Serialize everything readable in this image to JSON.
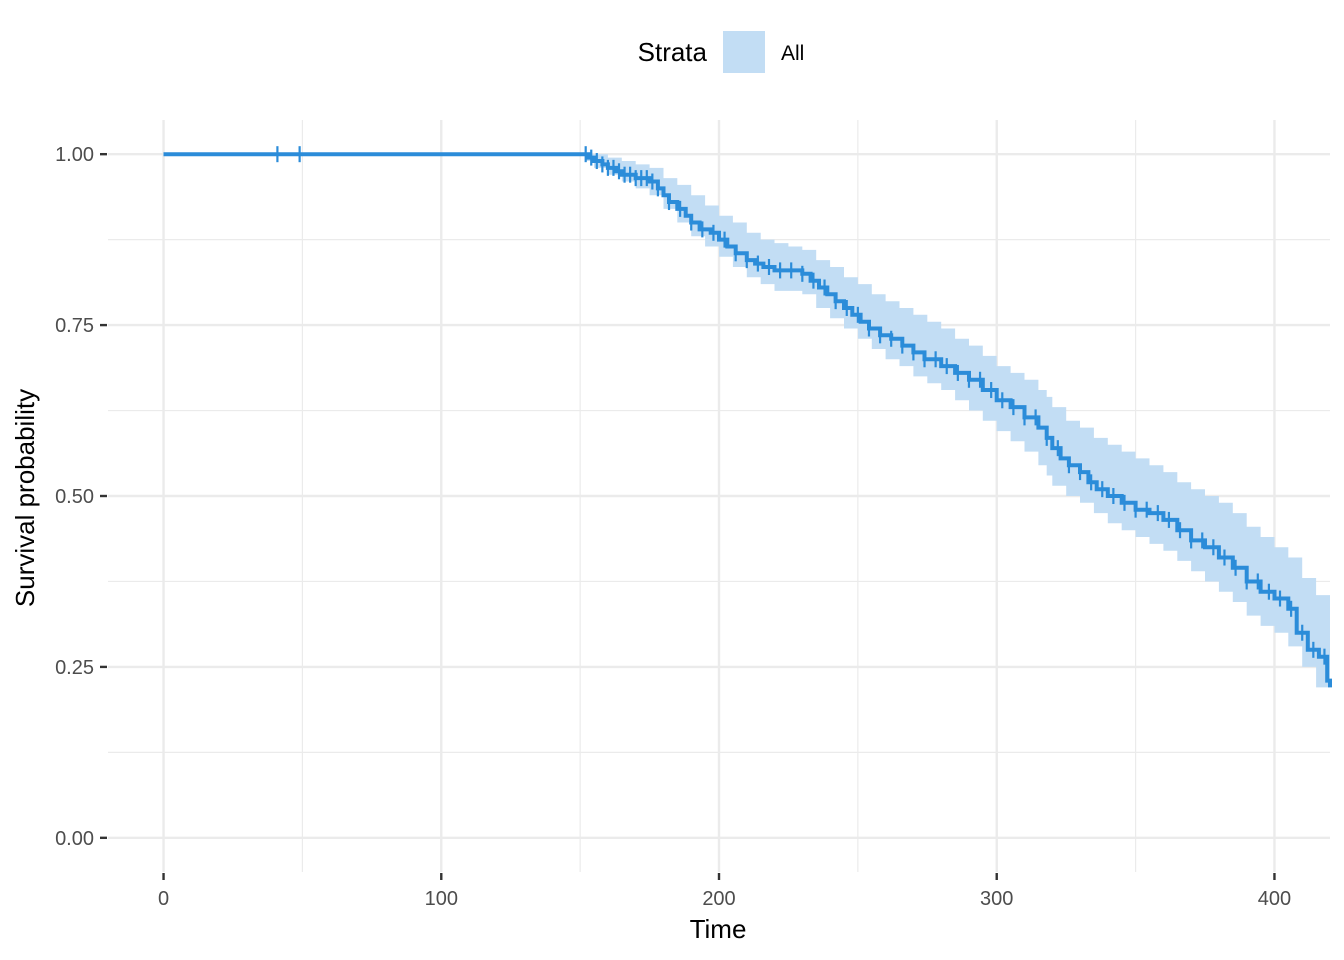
{
  "chart_data": {
    "type": "line",
    "subtype": "kaplan-meier survival curve with confidence band",
    "xlabel": "Time",
    "ylabel": "Survival probability",
    "xlim": [
      -20,
      420
    ],
    "ylim": [
      -0.05,
      1.05
    ],
    "x_ticks": [
      0,
      100,
      200,
      300,
      400
    ],
    "x_tick_labels": [
      "0",
      "100",
      "200",
      "300",
      "400"
    ],
    "y_ticks": [
      0,
      0.25,
      0.5,
      0.75,
      1.0
    ],
    "y_tick_labels": [
      "0.00",
      "0.25",
      "0.50",
      "0.75",
      "1.00"
    ],
    "grid": true,
    "legend": {
      "title": "Strata",
      "position": "top",
      "entries": [
        "All"
      ]
    },
    "colors": {
      "line": "#2b8cd9",
      "band": "#c2ddf4",
      "grid": "#ebebeb"
    },
    "series": [
      {
        "name": "All",
        "points": [
          [
            0,
            1.0
          ],
          [
            152,
            1.0
          ],
          [
            153,
            0.995
          ],
          [
            155,
            0.99
          ],
          [
            158,
            0.985
          ],
          [
            160,
            0.98
          ],
          [
            163,
            0.975
          ],
          [
            165,
            0.97
          ],
          [
            170,
            0.965
          ],
          [
            175,
            0.96
          ],
          [
            178,
            0.95
          ],
          [
            180,
            0.94
          ],
          [
            182,
            0.93
          ],
          [
            185,
            0.92
          ],
          [
            188,
            0.91
          ],
          [
            190,
            0.9
          ],
          [
            193,
            0.89
          ],
          [
            197,
            0.885
          ],
          [
            200,
            0.875
          ],
          [
            203,
            0.865
          ],
          [
            206,
            0.855
          ],
          [
            210,
            0.845
          ],
          [
            213,
            0.84
          ],
          [
            216,
            0.835
          ],
          [
            220,
            0.83
          ],
          [
            225,
            0.83
          ],
          [
            230,
            0.825
          ],
          [
            233,
            0.815
          ],
          [
            236,
            0.805
          ],
          [
            239,
            0.795
          ],
          [
            242,
            0.785
          ],
          [
            245,
            0.775
          ],
          [
            248,
            0.765
          ],
          [
            251,
            0.755
          ],
          [
            254,
            0.745
          ],
          [
            258,
            0.735
          ],
          [
            262,
            0.73
          ],
          [
            266,
            0.72
          ],
          [
            270,
            0.71
          ],
          [
            274,
            0.7
          ],
          [
            280,
            0.69
          ],
          [
            285,
            0.68
          ],
          [
            290,
            0.67
          ],
          [
            295,
            0.655
          ],
          [
            300,
            0.64
          ],
          [
            305,
            0.63
          ],
          [
            310,
            0.615
          ],
          [
            315,
            0.6
          ],
          [
            318,
            0.585
          ],
          [
            320,
            0.57
          ],
          [
            323,
            0.555
          ],
          [
            326,
            0.545
          ],
          [
            330,
            0.535
          ],
          [
            333,
            0.52
          ],
          [
            336,
            0.51
          ],
          [
            340,
            0.5
          ],
          [
            345,
            0.49
          ],
          [
            350,
            0.48
          ],
          [
            355,
            0.475
          ],
          [
            360,
            0.465
          ],
          [
            365,
            0.45
          ],
          [
            370,
            0.435
          ],
          [
            375,
            0.425
          ],
          [
            380,
            0.41
          ],
          [
            385,
            0.395
          ],
          [
            390,
            0.375
          ],
          [
            395,
            0.36
          ],
          [
            400,
            0.35
          ],
          [
            405,
            0.335
          ],
          [
            408,
            0.3
          ],
          [
            412,
            0.275
          ],
          [
            416,
            0.265
          ],
          [
            419,
            0.23
          ],
          [
            420,
            0.22
          ]
        ],
        "lower": [
          [
            0,
            1.0
          ],
          [
            152,
            0.99
          ],
          [
            155,
            0.98
          ],
          [
            160,
            0.97
          ],
          [
            165,
            0.96
          ],
          [
            170,
            0.95
          ],
          [
            175,
            0.94
          ],
          [
            180,
            0.92
          ],
          [
            185,
            0.9
          ],
          [
            190,
            0.88
          ],
          [
            195,
            0.865
          ],
          [
            200,
            0.85
          ],
          [
            205,
            0.835
          ],
          [
            210,
            0.82
          ],
          [
            215,
            0.81
          ],
          [
            220,
            0.8
          ],
          [
            225,
            0.8
          ],
          [
            230,
            0.795
          ],
          [
            235,
            0.775
          ],
          [
            240,
            0.76
          ],
          [
            245,
            0.745
          ],
          [
            250,
            0.73
          ],
          [
            255,
            0.715
          ],
          [
            260,
            0.7
          ],
          [
            265,
            0.69
          ],
          [
            270,
            0.675
          ],
          [
            275,
            0.665
          ],
          [
            280,
            0.655
          ],
          [
            285,
            0.64
          ],
          [
            290,
            0.625
          ],
          [
            295,
            0.61
          ],
          [
            300,
            0.595
          ],
          [
            305,
            0.58
          ],
          [
            310,
            0.565
          ],
          [
            315,
            0.545
          ],
          [
            318,
            0.53
          ],
          [
            320,
            0.515
          ],
          [
            325,
            0.5
          ],
          [
            330,
            0.49
          ],
          [
            335,
            0.475
          ],
          [
            340,
            0.46
          ],
          [
            345,
            0.45
          ],
          [
            350,
            0.44
          ],
          [
            355,
            0.43
          ],
          [
            360,
            0.42
          ],
          [
            365,
            0.405
          ],
          [
            370,
            0.39
          ],
          [
            375,
            0.375
          ],
          [
            380,
            0.36
          ],
          [
            385,
            0.345
          ],
          [
            390,
            0.325
          ],
          [
            395,
            0.31
          ],
          [
            400,
            0.3
          ],
          [
            405,
            0.28
          ],
          [
            410,
            0.25
          ],
          [
            415,
            0.22
          ],
          [
            420,
            0.175
          ]
        ],
        "upper": [
          [
            0,
            1.0
          ],
          [
            152,
            1.0
          ],
          [
            155,
            1.0
          ],
          [
            160,
            0.995
          ],
          [
            165,
            0.99
          ],
          [
            170,
            0.985
          ],
          [
            175,
            0.98
          ],
          [
            180,
            0.965
          ],
          [
            185,
            0.955
          ],
          [
            190,
            0.94
          ],
          [
            195,
            0.925
          ],
          [
            200,
            0.91
          ],
          [
            205,
            0.9
          ],
          [
            210,
            0.885
          ],
          [
            215,
            0.875
          ],
          [
            220,
            0.87
          ],
          [
            225,
            0.865
          ],
          [
            230,
            0.86
          ],
          [
            235,
            0.845
          ],
          [
            240,
            0.835
          ],
          [
            245,
            0.82
          ],
          [
            250,
            0.81
          ],
          [
            255,
            0.795
          ],
          [
            260,
            0.785
          ],
          [
            265,
            0.775
          ],
          [
            270,
            0.765
          ],
          [
            275,
            0.755
          ],
          [
            280,
            0.745
          ],
          [
            285,
            0.73
          ],
          [
            290,
            0.72
          ],
          [
            295,
            0.705
          ],
          [
            300,
            0.69
          ],
          [
            305,
            0.68
          ],
          [
            310,
            0.67
          ],
          [
            315,
            0.655
          ],
          [
            318,
            0.645
          ],
          [
            320,
            0.63
          ],
          [
            325,
            0.61
          ],
          [
            330,
            0.6
          ],
          [
            335,
            0.585
          ],
          [
            340,
            0.575
          ],
          [
            345,
            0.565
          ],
          [
            350,
            0.555
          ],
          [
            355,
            0.545
          ],
          [
            360,
            0.535
          ],
          [
            365,
            0.52
          ],
          [
            370,
            0.51
          ],
          [
            375,
            0.5
          ],
          [
            380,
            0.49
          ],
          [
            385,
            0.475
          ],
          [
            390,
            0.455
          ],
          [
            395,
            0.44
          ],
          [
            400,
            0.425
          ],
          [
            405,
            0.41
          ],
          [
            410,
            0.38
          ],
          [
            415,
            0.355
          ],
          [
            420,
            0.3
          ]
        ],
        "censor_times": [
          41,
          49,
          152,
          154,
          156,
          158,
          160,
          162,
          164,
          166,
          168,
          170,
          172,
          174,
          176,
          178,
          182,
          186,
          190,
          194,
          198,
          202,
          206,
          210,
          214,
          218,
          222,
          226,
          230,
          234,
          238,
          242,
          246,
          250,
          254,
          258,
          262,
          266,
          270,
          274,
          278,
          282,
          286,
          290,
          294,
          298,
          302,
          306,
          310,
          314,
          318,
          322,
          326,
          330,
          334,
          338,
          342,
          346,
          350,
          354,
          358,
          362,
          366,
          370,
          374,
          378,
          382,
          386,
          390,
          394,
          398,
          402,
          406,
          410,
          414,
          418
        ]
      }
    ]
  }
}
